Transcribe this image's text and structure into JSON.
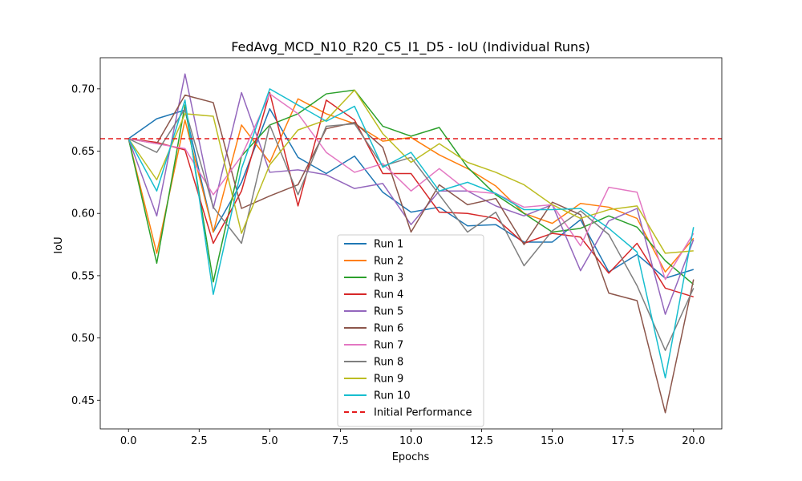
{
  "chart_data": {
    "type": "line",
    "title": "FedAvg_MCD_N10_R20_C5_I1_D5 - IoU (Individual Runs)",
    "xlabel": "Epochs",
    "ylabel": "IoU",
    "xlim": [
      -1,
      21
    ],
    "ylim": [
      0.427,
      0.725
    ],
    "xticks": [
      0.0,
      2.5,
      5.0,
      7.5,
      10.0,
      12.5,
      15.0,
      17.5,
      20.0
    ],
    "xtick_labels": [
      "0.0",
      "2.5",
      "5.0",
      "7.5",
      "10.0",
      "12.5",
      "15.0",
      "17.5",
      "20.0"
    ],
    "yticks": [
      0.45,
      0.5,
      0.55,
      0.6,
      0.65,
      0.7
    ],
    "ytick_labels": [
      "0.45",
      "0.50",
      "0.55",
      "0.60",
      "0.65",
      "0.70"
    ],
    "grid": false,
    "legend_position": "bottom-center",
    "x": [
      0,
      1,
      2,
      3,
      4,
      5,
      6,
      7,
      8,
      9,
      10,
      11,
      12,
      13,
      14,
      15,
      16,
      17,
      18,
      19,
      20
    ],
    "series": [
      {
        "name": "Run 1",
        "color": "#1f77b4",
        "values": [
          0.66,
          0.676,
          0.683,
          0.585,
          0.625,
          0.684,
          0.645,
          0.632,
          0.646,
          0.617,
          0.601,
          0.605,
          0.59,
          0.591,
          0.577,
          0.577,
          0.595,
          0.553,
          0.567,
          0.548,
          0.555
        ]
      },
      {
        "name": "Run 2",
        "color": "#ff7f0e",
        "values": [
          0.66,
          0.568,
          0.675,
          0.585,
          0.671,
          0.641,
          0.692,
          0.68,
          0.672,
          0.658,
          0.661,
          0.647,
          0.636,
          0.622,
          0.6,
          0.592,
          0.608,
          0.605,
          0.596,
          0.553,
          0.58
        ]
      },
      {
        "name": "Run 3",
        "color": "#2ca02c",
        "values": [
          0.66,
          0.56,
          0.687,
          0.545,
          0.646,
          0.671,
          0.68,
          0.696,
          0.699,
          0.67,
          0.662,
          0.669,
          0.637,
          0.615,
          0.6,
          0.585,
          0.588,
          0.598,
          0.589,
          0.562,
          0.543
        ]
      },
      {
        "name": "Run 4",
        "color": "#d62728",
        "values": [
          0.66,
          0.657,
          0.651,
          0.576,
          0.618,
          0.697,
          0.606,
          0.691,
          0.675,
          0.632,
          0.632,
          0.601,
          0.6,
          0.596,
          0.576,
          0.584,
          0.581,
          0.552,
          0.576,
          0.54,
          0.533
        ]
      },
      {
        "name": "Run 5",
        "color": "#9467bd",
        "values": [
          0.66,
          0.598,
          0.712,
          0.604,
          0.697,
          0.633,
          0.635,
          0.631,
          0.62,
          0.624,
          0.591,
          0.618,
          0.618,
          0.606,
          0.598,
          0.607,
          0.554,
          0.594,
          0.604,
          0.519,
          0.579
        ]
      },
      {
        "name": "Run 6",
        "color": "#8c564b",
        "values": [
          0.66,
          0.656,
          0.695,
          0.689,
          0.604,
          0.614,
          0.623,
          0.668,
          0.673,
          0.653,
          0.585,
          0.623,
          0.607,
          0.612,
          0.575,
          0.609,
          0.599,
          0.536,
          0.53,
          0.44,
          0.547
        ]
      },
      {
        "name": "Run 7",
        "color": "#e377c2",
        "values": [
          0.66,
          0.656,
          0.652,
          0.615,
          0.646,
          0.696,
          0.68,
          0.649,
          0.633,
          0.64,
          0.618,
          0.636,
          0.618,
          0.616,
          0.605,
          0.607,
          0.574,
          0.621,
          0.617,
          0.547,
          0.584
        ]
      },
      {
        "name": "Run 8",
        "color": "#7f7f7f",
        "values": [
          0.66,
          0.649,
          0.684,
          0.605,
          0.576,
          0.671,
          0.615,
          0.67,
          0.672,
          0.638,
          0.645,
          0.615,
          0.585,
          0.601,
          0.558,
          0.586,
          0.602,
          0.583,
          0.542,
          0.49,
          0.54
        ]
      },
      {
        "name": "Run 9",
        "color": "#bcbd22",
        "values": [
          0.66,
          0.627,
          0.68,
          0.678,
          0.584,
          0.639,
          0.667,
          0.675,
          0.699,
          0.664,
          0.641,
          0.656,
          0.641,
          0.633,
          0.623,
          0.607,
          0.596,
          0.603,
          0.606,
          0.568,
          0.57
        ]
      },
      {
        "name": "Run 10",
        "color": "#17becf",
        "values": [
          0.66,
          0.618,
          0.691,
          0.535,
          0.636,
          0.7,
          0.687,
          0.674,
          0.686,
          0.637,
          0.649,
          0.618,
          0.625,
          0.616,
          0.603,
          0.603,
          0.604,
          0.588,
          0.569,
          0.468,
          0.589
        ]
      }
    ],
    "reference_line": {
      "name": "Initial Performance",
      "value": 0.66,
      "color": "#e41a1c",
      "style": "dashed"
    }
  }
}
